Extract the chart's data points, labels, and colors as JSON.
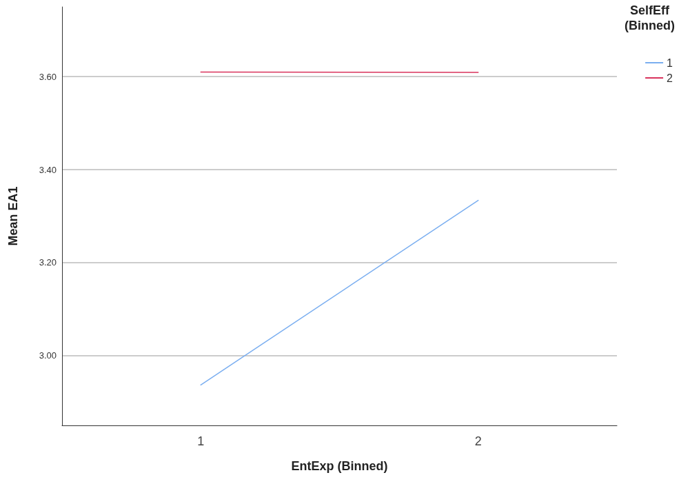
{
  "chart_data": {
    "type": "line",
    "xlabel": "EntExp (Binned)",
    "ylabel": "Mean EA1",
    "legend_title": "SelfEff\n(Binned)",
    "categories": [
      "1",
      "2"
    ],
    "series": [
      {
        "name": "1",
        "color": "#7aaef0",
        "values": [
          2.937,
          3.334
        ]
      },
      {
        "name": "2",
        "color": "#d9335c",
        "values": [
          3.61,
          3.609
        ]
      }
    ],
    "ylim": [
      2.85,
      3.75
    ],
    "yticks": [
      {
        "value": 3,
        "label": "3.00"
      },
      {
        "value": 3.2,
        "label": "3.20"
      },
      {
        "value": 3.4,
        "label": "3.40"
      },
      {
        "value": 3.6,
        "label": "3.60"
      }
    ],
    "grid": "y",
    "legend": "top right",
    "marker": "none",
    "line_style": "solid"
  }
}
